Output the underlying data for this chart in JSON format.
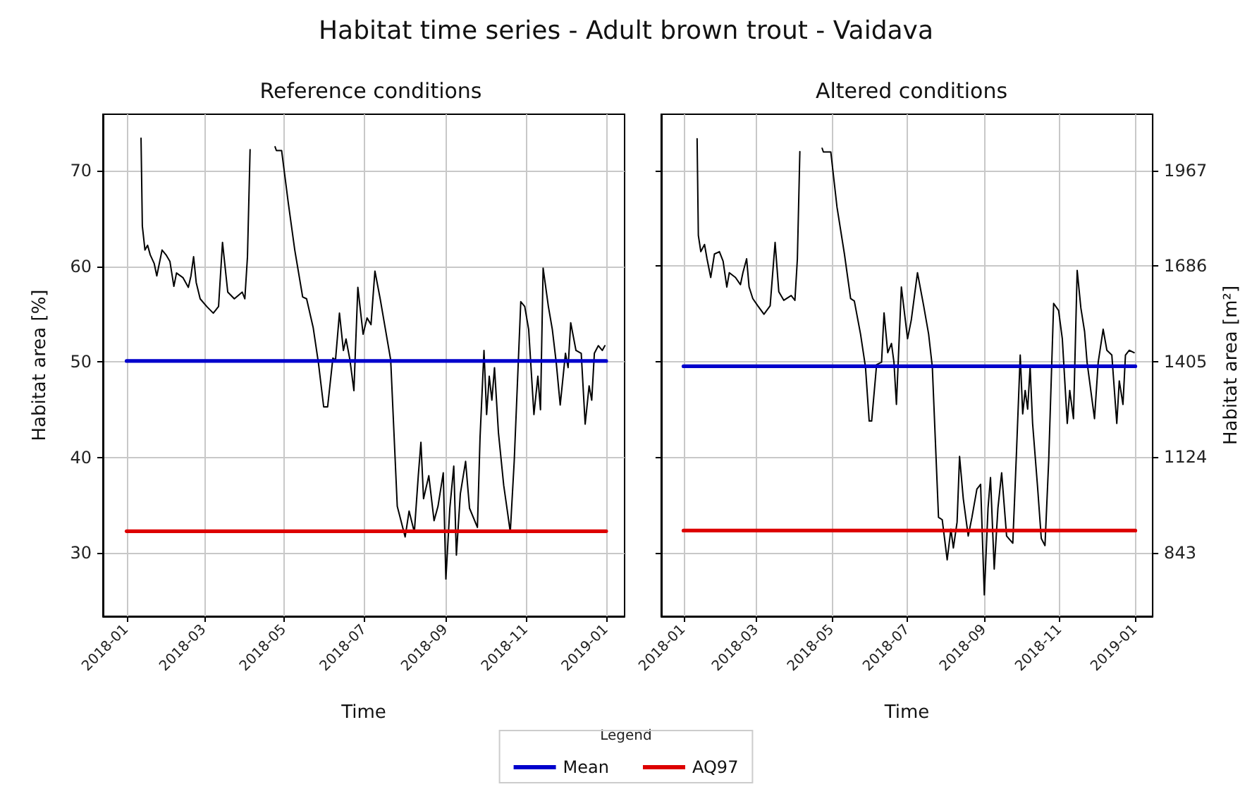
{
  "chart_data": [
    {
      "type": "line",
      "title": "Habitat time series - Adult brown trout - Vaidava",
      "subtitle": "Reference conditions",
      "xlabel": "Time",
      "ylabel": "Habitat area [%]",
      "xlim": [
        "2017-12-14",
        "2019-01-15"
      ],
      "xticks": [
        "2018-01",
        "2018-03",
        "2018-05",
        "2018-07",
        "2018-09",
        "2018-11",
        "2019-01"
      ],
      "ylim": [
        23.4,
        75.9
      ],
      "yticks": [
        30,
        40,
        50,
        60,
        70
      ],
      "grid": true,
      "legend": "bottom",
      "legend_title": "Legend",
      "series": [
        {
          "color": "#000000",
          "x": [
            "2018-01-12",
            "2018-01-13",
            "2018-01-15",
            "2018-01-17",
            "2018-01-19",
            "2018-01-22",
            "2018-01-24",
            "2018-01-28",
            "2018-01-31",
            "2018-02-03",
            "2018-02-06",
            "2018-02-08",
            "2018-02-13",
            "2018-02-17",
            "2018-02-19",
            "2018-02-21",
            "2018-02-23",
            "2018-02-26",
            "2018-03-03",
            "2018-03-08",
            "2018-03-12",
            "2018-03-15",
            "2018-03-19",
            "2018-03-24",
            "2018-03-30",
            "2018-04-01",
            "2018-04-03",
            "2018-04-05",
            "2018-04-15",
            "2018-04-24",
            "2018-04-25",
            "2018-04-29",
            "2018-05-04",
            "2018-05-09",
            "2018-05-15",
            "2018-05-18",
            "2018-05-23",
            "2018-05-27",
            "2018-05-31",
            "2018-06-03",
            "2018-06-07",
            "2018-06-09",
            "2018-06-12",
            "2018-06-15",
            "2018-06-17",
            "2018-06-20",
            "2018-06-23",
            "2018-06-26",
            "2018-06-30",
            "2018-07-03",
            "2018-07-06",
            "2018-07-09",
            "2018-07-13",
            "2018-07-17",
            "2018-07-21",
            "2018-07-26",
            "2018-08-01",
            "2018-08-04",
            "2018-08-08",
            "2018-08-11",
            "2018-08-13",
            "2018-08-15",
            "2018-08-19",
            "2018-08-23",
            "2018-08-26",
            "2018-08-30",
            "2018-09-01",
            "2018-09-04",
            "2018-09-07",
            "2018-09-09",
            "2018-09-12",
            "2018-09-16",
            "2018-09-19",
            "2018-09-25",
            "2018-09-27",
            "2018-09-30",
            "2018-10-02",
            "2018-10-04",
            "2018-10-06",
            "2018-10-08",
            "2018-10-11",
            "2018-10-15",
            "2018-10-18",
            "2018-10-20",
            "2018-10-23",
            "2018-10-28",
            "2018-10-31",
            "2018-11-03",
            "2018-11-07",
            "2018-11-10",
            "2018-11-12",
            "2018-11-14",
            "2018-11-18",
            "2018-11-21",
            "2018-11-24",
            "2018-11-27",
            "2018-12-01",
            "2018-12-03",
            "2018-12-05",
            "2018-12-09",
            "2018-12-13",
            "2018-12-16",
            "2018-12-19",
            "2018-12-21",
            "2018-12-23",
            "2018-12-26",
            "2018-12-29",
            "2018-12-31"
          ],
          "values": [
            73.4,
            64.2,
            61.7,
            62.2,
            61.2,
            60.3,
            59.0,
            61.7,
            61.2,
            60.5,
            57.9,
            59.3,
            58.8,
            57.8,
            59.0,
            61.0,
            58.3,
            56.6,
            55.8,
            55.1,
            55.8,
            62.5,
            57.3,
            56.6,
            57.3,
            56.6,
            61.0,
            72.2,
            null,
            72.5,
            72.1,
            72.1,
            66.7,
            61.7,
            56.8,
            56.6,
            53.6,
            49.9,
            45.3,
            45.3,
            50.4,
            50.2,
            55.1,
            51.2,
            52.4,
            50.2,
            47.0,
            57.8,
            52.9,
            54.6,
            53.9,
            59.5,
            56.6,
            53.4,
            50.2,
            34.9,
            31.7,
            34.4,
            32.2,
            38.1,
            41.6,
            35.7,
            38.1,
            33.4,
            34.9,
            38.4,
            27.3,
            34.7,
            39.1,
            29.8,
            36.2,
            39.6,
            34.7,
            32.7,
            42.1,
            51.2,
            44.5,
            48.5,
            46.0,
            49.4,
            42.6,
            37.1,
            34.2,
            32.2,
            39.6,
            56.3,
            55.8,
            53.4,
            44.5,
            48.5,
            45.0,
            59.8,
            55.8,
            53.4,
            49.9,
            45.5,
            50.9,
            49.4,
            54.1,
            51.2,
            50.9,
            43.5,
            47.5,
            46.0,
            50.9,
            51.7,
            51.2,
            51.7
          ]
        },
        {
          "name": "Mean",
          "color": "#0000cc",
          "x": [
            "2018-01-01",
            "2019-01-01"
          ],
          "values": [
            50.1,
            50.1
          ]
        },
        {
          "name": "AQ97",
          "color": "#dd0000",
          "x": [
            "2018-01-01",
            "2019-01-01"
          ],
          "values": [
            32.3,
            32.3
          ]
        }
      ]
    },
    {
      "type": "line",
      "title": "Altered conditions",
      "xlabel": "Time",
      "y2label": "Habitat area [m²]",
      "xlim": [
        "2017-12-14",
        "2019-01-15"
      ],
      "xticks": [
        "2018-01",
        "2018-03",
        "2018-05",
        "2018-07",
        "2018-09",
        "2018-11",
        "2019-01"
      ],
      "y2lim": [
        656,
        2132
      ],
      "y2ticks": [
        843,
        1124,
        1405,
        1686,
        1967
      ],
      "grid": true,
      "series": [
        {
          "color": "#000000",
          "axis": "y2",
          "x": [
            "2018-01-12",
            "2018-01-13",
            "2018-01-15",
            "2018-01-18",
            "2018-01-20",
            "2018-01-23",
            "2018-01-26",
            "2018-01-30",
            "2018-02-02",
            "2018-02-05",
            "2018-02-07",
            "2018-02-12",
            "2018-02-16",
            "2018-02-18",
            "2018-02-21",
            "2018-02-23",
            "2018-02-26",
            "2018-03-02",
            "2018-03-07",
            "2018-03-12",
            "2018-03-16",
            "2018-03-19",
            "2018-03-23",
            "2018-03-29",
            "2018-04-01",
            "2018-04-03",
            "2018-04-05",
            "2018-04-15",
            "2018-04-23",
            "2018-04-24",
            "2018-04-30",
            "2018-05-05",
            "2018-05-11",
            "2018-05-16",
            "2018-05-19",
            "2018-05-24",
            "2018-05-28",
            "2018-05-31",
            "2018-06-02",
            "2018-06-06",
            "2018-06-10",
            "2018-06-12",
            "2018-06-15",
            "2018-06-18",
            "2018-06-20",
            "2018-06-22",
            "2018-06-26",
            "2018-07-01",
            "2018-07-04",
            "2018-07-09",
            "2018-07-14",
            "2018-07-18",
            "2018-07-21",
            "2018-07-26",
            "2018-07-29",
            "2018-08-02",
            "2018-08-05",
            "2018-08-07",
            "2018-08-10",
            "2018-08-12",
            "2018-08-15",
            "2018-08-19",
            "2018-08-22",
            "2018-08-26",
            "2018-08-29",
            "2018-09-01",
            "2018-09-04",
            "2018-09-06",
            "2018-09-09",
            "2018-09-12",
            "2018-09-15",
            "2018-09-19",
            "2018-09-24",
            "2018-09-27",
            "2018-09-30",
            "2018-10-02",
            "2018-10-04",
            "2018-10-06",
            "2018-10-08",
            "2018-10-10",
            "2018-10-14",
            "2018-10-17",
            "2018-10-20",
            "2018-10-23",
            "2018-10-27",
            "2018-10-31",
            "2018-11-03",
            "2018-11-07",
            "2018-11-09",
            "2018-11-12",
            "2018-11-15",
            "2018-11-18",
            "2018-11-21",
            "2018-11-23",
            "2018-11-29",
            "2018-12-02",
            "2018-12-06",
            "2018-12-09",
            "2018-12-13",
            "2018-12-17",
            "2018-12-19",
            "2018-12-22",
            "2018-12-24",
            "2018-12-27",
            "2018-12-31"
          ],
          "values": [
            2060,
            1776,
            1728,
            1749,
            1707,
            1652,
            1721,
            1728,
            1700,
            1624,
            1666,
            1652,
            1631,
            1666,
            1707,
            1624,
            1590,
            1569,
            1544,
            1569,
            1755,
            1610,
            1585,
            1599,
            1585,
            1707,
            2022,
            null,
            2032,
            2021,
            2021,
            1859,
            1721,
            1590,
            1583,
            1486,
            1389,
            1230,
            1230,
            1396,
            1403,
            1548,
            1431,
            1458,
            1403,
            1279,
            1624,
            1472,
            1527,
            1666,
            1569,
            1486,
            1389,
            947,
            940,
            822,
            912,
            857,
            933,
            1126,
            1002,
            892,
            947,
            1030,
            1044,
            719,
            974,
            1064,
            795,
            974,
            1078,
            892,
            871,
            1140,
            1424,
            1251,
            1320,
            1265,
            1389,
            1223,
            1037,
            885,
            864,
            1113,
            1576,
            1555,
            1472,
            1223,
            1320,
            1237,
            1673,
            1562,
            1493,
            1403,
            1237,
            1403,
            1500,
            1438,
            1424,
            1223,
            1348,
            1279,
            1424,
            1438,
            1431
          ]
        },
        {
          "color": "#0000cc",
          "axis": "y2",
          "x": [
            "2018-01-01",
            "2019-01-01"
          ],
          "values": [
            1391,
            1391
          ]
        },
        {
          "color": "#dd0000",
          "axis": "y2",
          "x": [
            "2018-01-01",
            "2019-01-01"
          ],
          "values": [
            908,
            908
          ]
        }
      ]
    }
  ]
}
